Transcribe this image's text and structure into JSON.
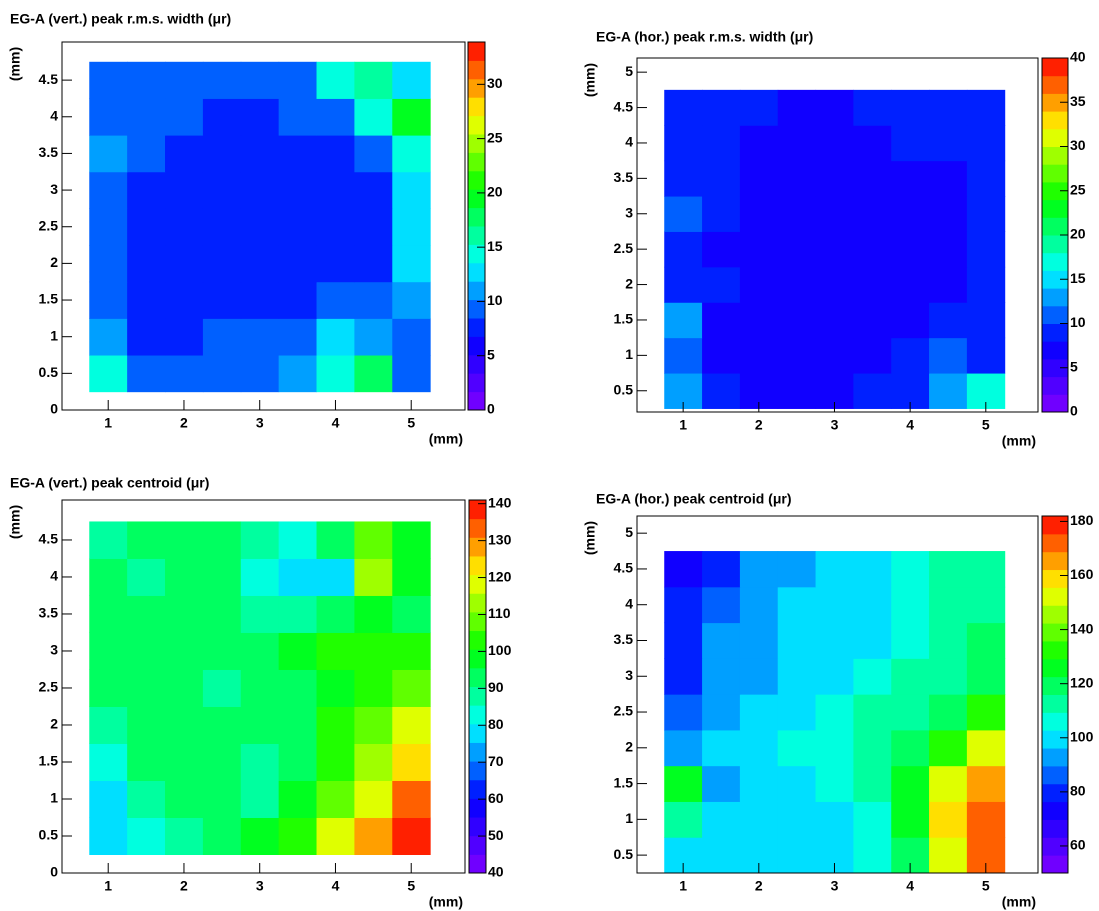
{
  "chart_data": [
    {
      "type": "heatmap",
      "title": "EG-A (vert.) peak r.m.s. width (μr)",
      "xlabel": "(mm)",
      "ylabel": "(mm)",
      "x": [
        1,
        1.5,
        2,
        2.5,
        3,
        3.5,
        4,
        4.5,
        5
      ],
      "y": [
        0.5,
        1,
        1.5,
        2,
        2.5,
        3,
        3.5,
        4,
        4.5
      ],
      "z": [
        [
          14,
          9,
          9,
          9,
          9,
          11,
          14,
          18,
          10
        ],
        [
          11,
          8,
          8,
          10,
          9,
          10,
          13,
          11,
          10
        ],
        [
          10,
          8,
          8,
          8,
          8,
          8,
          9,
          9,
          11
        ],
        [
          9,
          8,
          8,
          8,
          8,
          8,
          8,
          8,
          12
        ],
        [
          9,
          8,
          8,
          8,
          8,
          8,
          8,
          8,
          13
        ],
        [
          10,
          8,
          8,
          8,
          8,
          8,
          8,
          8,
          12
        ],
        [
          11,
          9,
          8,
          8,
          8,
          8,
          8,
          9,
          15
        ],
        [
          10,
          9,
          9,
          8,
          8,
          9,
          10,
          14,
          20
        ],
        [
          9,
          9,
          9,
          9,
          9,
          10,
          14,
          16,
          12
        ]
      ],
      "xlim": [
        0.39,
        5.71
      ],
      "ylim": [
        0,
        5.02
      ],
      "xticks": [
        1,
        2,
        3,
        4,
        5
      ],
      "yticks": [
        0,
        0.5,
        1,
        1.5,
        2,
        2.5,
        3,
        3.5,
        4,
        4.5
      ],
      "zlim": [
        0,
        33.9
      ],
      "zticks": [
        0,
        5,
        10,
        15,
        20,
        25,
        30
      ],
      "colormap": [
        "#8000ff",
        "#0000ff",
        "#00ffff",
        "#00ff00",
        "#ffff00",
        "#ff0000"
      ]
    },
    {
      "type": "heatmap",
      "title": "EG-A (hor.) peak r.m.s. width (μr)",
      "xlabel": "(mm)",
      "ylabel": "(mm)",
      "x": [
        1,
        1.5,
        2,
        2.5,
        3,
        3.5,
        4,
        4.5,
        5
      ],
      "y": [
        0.5,
        1,
        1.5,
        2,
        2.5,
        3,
        3.5,
        4,
        4.5
      ],
      "z": [
        [
          12,
          8,
          7,
          7,
          7,
          8,
          9,
          13,
          16
        ],
        [
          11,
          7,
          6,
          6,
          6,
          6,
          8,
          10,
          9
        ],
        [
          12,
          7,
          6,
          6,
          6,
          6,
          6,
          9,
          9
        ],
        [
          9,
          8,
          6,
          6,
          6,
          6,
          6,
          7,
          8
        ],
        [
          9,
          7,
          6,
          6,
          6,
          6,
          7,
          6,
          8
        ],
        [
          10,
          8,
          7,
          6,
          6,
          6,
          6,
          6,
          8
        ],
        [
          9,
          8,
          7,
          6,
          6,
          6,
          7,
          7,
          8
        ],
        [
          9,
          8,
          7,
          7,
          7,
          7,
          8,
          8,
          8
        ],
        [
          9,
          9,
          8,
          7,
          7,
          8,
          9,
          9,
          9
        ]
      ],
      "xlim": [
        0.39,
        5.69
      ],
      "ylim": [
        0.2,
        5.2
      ],
      "xticks": [
        1,
        2,
        3,
        4,
        5
      ],
      "yticks": [
        0.5,
        1,
        1.5,
        2,
        2.5,
        3,
        3.5,
        4,
        4.5,
        5
      ],
      "zlim": [
        0,
        40
      ],
      "zticks": [
        0,
        5,
        10,
        15,
        20,
        25,
        30,
        35,
        40
      ],
      "colormap": [
        "#8000ff",
        "#0000ff",
        "#00ffff",
        "#00ff00",
        "#ffff00",
        "#ff0000"
      ]
    },
    {
      "type": "heatmap",
      "title": "EG-A (vert.) peak centroid (μr)",
      "xlabel": "(mm)",
      "ylabel": "(mm)",
      "x": [
        1,
        1.5,
        2,
        2.5,
        3,
        3.5,
        4,
        4.5,
        5
      ],
      "y": [
        0.5,
        1,
        1.5,
        2,
        2.5,
        3,
        3.5,
        4,
        4.5
      ],
      "z": [
        [
          80,
          85,
          90,
          95,
          100,
          105,
          120,
          130,
          138
        ],
        [
          78,
          90,
          95,
          92,
          90,
          100,
          110,
          120,
          135
        ],
        [
          85,
          95,
          95,
          95,
          90,
          95,
          105,
          115,
          125
        ],
        [
          90,
          95,
          95,
          92,
          92,
          95,
          105,
          110,
          120
        ],
        [
          92,
          95,
          92,
          90,
          92,
          95,
          100,
          105,
          110
        ],
        [
          95,
          95,
          95,
          92,
          95,
          100,
          105,
          105,
          105
        ],
        [
          95,
          92,
          95,
          92,
          90,
          88,
          95,
          100,
          95
        ],
        [
          92,
          90,
          95,
          92,
          85,
          78,
          80,
          115,
          100
        ],
        [
          90,
          92,
          95,
          95,
          88,
          85,
          95,
          110,
          100
        ]
      ],
      "xlim": [
        0.39,
        5.71
      ],
      "ylim": [
        0,
        5.04
      ],
      "xticks": [
        1,
        2,
        3,
        4,
        5
      ],
      "yticks": [
        0,
        0.5,
        1,
        1.5,
        2,
        2.5,
        3,
        3.5,
        4,
        4.5
      ],
      "zlim": [
        40,
        141
      ],
      "zticks": [
        40,
        50,
        60,
        70,
        80,
        90,
        100,
        110,
        120,
        130,
        140
      ],
      "colormap": [
        "#8000ff",
        "#0000ff",
        "#00ffff",
        "#00ff00",
        "#ffff00",
        "#ff0000"
      ]
    },
    {
      "type": "heatmap",
      "title": "EG-A (hor.) peak centroid (μr)",
      "xlabel": "(mm)",
      "ylabel": "(mm)",
      "x": [
        1,
        1.5,
        2,
        2.5,
        3,
        3.5,
        4,
        4.5,
        5
      ],
      "y": [
        0.5,
        1,
        1.5,
        2,
        2.5,
        3,
        3.5,
        4,
        4.5
      ],
      "z": [
        [
          100,
          100,
          100,
          100,
          100,
          105,
          120,
          150,
          170
        ],
        [
          110,
          100,
          100,
          100,
          100,
          105,
          125,
          160,
          175
        ],
        [
          125,
          95,
          100,
          100,
          105,
          110,
          125,
          150,
          165
        ],
        [
          90,
          100,
          100,
          105,
          105,
          110,
          120,
          130,
          150
        ],
        [
          85,
          90,
          100,
          100,
          105,
          110,
          115,
          120,
          130
        ],
        [
          80,
          90,
          95,
          100,
          100,
          105,
          110,
          115,
          120
        ],
        [
          82,
          90,
          95,
          100,
          100,
          100,
          105,
          115,
          120
        ],
        [
          80,
          85,
          95,
          100,
          100,
          100,
          105,
          110,
          115
        ],
        [
          75,
          80,
          90,
          95,
          100,
          100,
          105,
          110,
          115
        ]
      ],
      "xlim": [
        0.39,
        5.69
      ],
      "ylim": [
        0.25,
        5.24
      ],
      "xticks": [
        1,
        2,
        3,
        4,
        5
      ],
      "yticks": [
        0.5,
        1,
        1.5,
        2,
        2.5,
        3,
        3.5,
        4,
        4.5,
        5
      ],
      "zlim": [
        50,
        182
      ],
      "zticks": [
        60,
        80,
        100,
        120,
        140,
        160,
        180
      ],
      "colormap": [
        "#8000ff",
        "#0000ff",
        "#00ffff",
        "#00ff00",
        "#ffff00",
        "#ff0000"
      ]
    }
  ]
}
